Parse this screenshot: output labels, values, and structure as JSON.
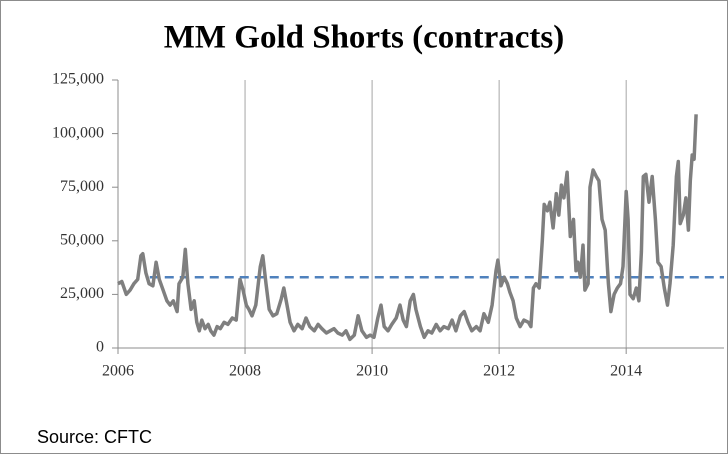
{
  "chart_data": {
    "type": "line",
    "title": "MM Gold Shorts (contracts)",
    "source": "Source: CFTC",
    "x": [
      2006.0,
      2006.06,
      2006.13,
      2006.19,
      2006.25,
      2006.31,
      2006.36,
      2006.39,
      2006.44,
      2006.49,
      2006.55,
      2006.6,
      2006.65,
      2006.71,
      2006.77,
      2006.82,
      2006.87,
      2006.93,
      2006.96,
      2007.02,
      2007.06,
      2007.1,
      2007.15,
      2007.2,
      2007.24,
      2007.28,
      2007.32,
      2007.37,
      2007.42,
      2007.46,
      2007.51,
      2007.56,
      2007.61,
      2007.67,
      2007.73,
      2007.8,
      2007.86,
      2007.92,
      2007.97,
      2008.02,
      2008.06,
      2008.11,
      2008.17,
      2008.24,
      2008.28,
      2008.33,
      2008.38,
      2008.44,
      2008.5,
      2008.57,
      2008.61,
      2008.66,
      2008.71,
      2008.77,
      2008.83,
      2008.9,
      2008.96,
      2009.02,
      2009.09,
      2009.15,
      2009.21,
      2009.28,
      2009.34,
      2009.4,
      2009.46,
      2009.53,
      2009.59,
      2009.65,
      2009.72,
      2009.78,
      2009.84,
      2009.91,
      2009.97,
      2010.03,
      2010.09,
      2010.14,
      2010.19,
      2010.25,
      2010.31,
      2010.38,
      2010.44,
      2010.49,
      2010.54,
      2010.6,
      2010.65,
      2010.69,
      2010.76,
      2010.82,
      2010.88,
      2010.94,
      2011.01,
      2011.07,
      2011.13,
      2011.2,
      2011.26,
      2011.32,
      2011.39,
      2011.45,
      2011.51,
      2011.57,
      2011.64,
      2011.7,
      2011.76,
      2011.83,
      2011.89,
      2011.95,
      2011.98,
      2012.03,
      2012.08,
      2012.13,
      2012.17,
      2012.22,
      2012.27,
      2012.33,
      2012.39,
      2012.46,
      2012.5,
      2012.54,
      2012.58,
      2012.63,
      2012.68,
      2012.71,
      2012.76,
      2012.8,
      2012.85,
      2012.9,
      2012.94,
      2012.98,
      2013.02,
      2013.07,
      2013.12,
      2013.17,
      2013.21,
      2013.24,
      2013.28,
      2013.32,
      2013.35,
      2013.4,
      2013.43,
      2013.48,
      2013.53,
      2013.57,
      2013.62,
      2013.67,
      2013.72,
      2013.76,
      2013.81,
      2013.86,
      2013.91,
      2013.95,
      2014.0,
      2014.03,
      2014.06,
      2014.11,
      2014.16,
      2014.2,
      2014.24,
      2014.27,
      2014.31,
      2014.36,
      2014.41,
      2014.46,
      2014.5,
      2014.55,
      2014.6,
      2014.65,
      2014.69,
      2014.74,
      2014.79,
      2014.82,
      2014.85,
      2014.9,
      2014.94,
      2014.98,
      2015.01,
      2015.04,
      2015.07,
      2015.1
    ],
    "values": [
      30000,
      31000,
      25000,
      27000,
      30000,
      32000,
      43000,
      44000,
      35000,
      30000,
      29000,
      40000,
      32000,
      27000,
      22000,
      20000,
      22000,
      17000,
      30000,
      33000,
      46000,
      30000,
      18000,
      22000,
      12000,
      8000,
      13000,
      9000,
      11000,
      8000,
      6000,
      10000,
      9000,
      12000,
      11000,
      14000,
      13000,
      32000,
      27000,
      20000,
      18000,
      15000,
      20000,
      38000,
      43000,
      30000,
      18000,
      15000,
      16000,
      23000,
      28000,
      20000,
      12000,
      8000,
      11000,
      9000,
      14000,
      10000,
      8000,
      11000,
      9000,
      7000,
      8000,
      9000,
      7000,
      6000,
      8000,
      4000,
      6000,
      15000,
      8000,
      5000,
      6000,
      5000,
      14000,
      20000,
      10000,
      8000,
      11000,
      14000,
      20000,
      13000,
      10000,
      22000,
      25000,
      18000,
      10000,
      5000,
      8000,
      7000,
      11000,
      8000,
      10000,
      9000,
      13000,
      8000,
      15000,
      17000,
      12000,
      8000,
      10000,
      8000,
      16000,
      12000,
      20000,
      36000,
      41000,
      29000,
      33000,
      30000,
      26000,
      22000,
      14000,
      10000,
      13000,
      12000,
      10000,
      28000,
      30000,
      28000,
      50000,
      67000,
      64000,
      68000,
      56000,
      72000,
      62000,
      76000,
      70000,
      82000,
      52000,
      60000,
      36000,
      40000,
      33000,
      48000,
      27000,
      30000,
      75000,
      83000,
      80000,
      78000,
      60000,
      55000,
      30000,
      17000,
      25000,
      28000,
      30000,
      38000,
      73000,
      60000,
      25000,
      23000,
      28000,
      22000,
      45000,
      80000,
      81000,
      68000,
      80000,
      60000,
      40000,
      38000,
      28000,
      20000,
      30000,
      48000,
      80000,
      87000,
      58000,
      62000,
      70000,
      55000,
      78000,
      90000,
      88000,
      109000
    ],
    "color": "#7f7f7f",
    "reference": {
      "value": 33000,
      "color": "#4f81bd"
    },
    "xlim": [
      2006,
      2015.54
    ],
    "xticks": [
      2006,
      2008,
      2010,
      2012,
      2014
    ],
    "ylim": [
      0,
      125000
    ],
    "yticks": [
      0,
      {
        "value": 25000,
        "label": "25,000"
      },
      {
        "value": 50000,
        "label": "50,000"
      },
      {
        "value": 75000,
        "label": "75,000"
      },
      {
        "value": 100000,
        "label": "100,000"
      },
      {
        "value": 125000,
        "label": "125,000"
      }
    ],
    "grid": "x"
  }
}
